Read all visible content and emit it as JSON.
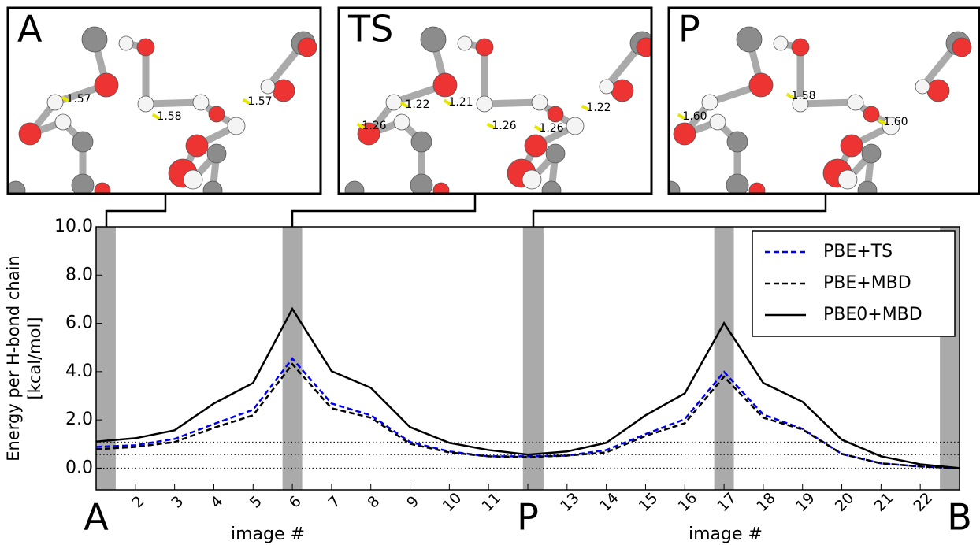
{
  "panels": [
    {
      "label": "A",
      "distances": [
        "1.57",
        "1.58",
        "1.57"
      ]
    },
    {
      "label": "TS",
      "distances": [
        "1.26",
        "1.22",
        "1.21",
        "1.26",
        "1.26",
        "1.22"
      ]
    },
    {
      "label": "P",
      "distances": [
        "1.60",
        "1.58",
        "1.60"
      ]
    }
  ],
  "chart_data": {
    "type": "line",
    "ylabel": [
      "Energy per H-bond chain",
      "[kcal/mol]"
    ],
    "xlabel": "image #",
    "x": [
      1,
      2,
      3,
      4,
      5,
      6,
      7,
      8,
      9,
      10,
      11,
      12,
      13,
      14,
      15,
      16,
      17,
      18,
      19,
      20,
      21,
      22,
      23
    ],
    "xlim": [
      1,
      23
    ],
    "xticks": [
      2,
      3,
      4,
      5,
      6,
      7,
      8,
      9,
      10,
      11,
      13,
      14,
      15,
      16,
      17,
      18,
      19,
      20,
      21,
      22
    ],
    "point_labels": [
      {
        "value": 1,
        "label": "A"
      },
      {
        "value": 12,
        "label": "P"
      },
      {
        "value": 23,
        "label": "B"
      }
    ],
    "ylim": [
      -0.9,
      10
    ],
    "yticks": [
      {
        "value": 0,
        "label": "0.0"
      },
      {
        "value": 2,
        "label": "2.0"
      },
      {
        "value": 4,
        "label": "4.0"
      },
      {
        "value": 6,
        "label": "6.0"
      },
      {
        "value": 8,
        "label": "8.0"
      },
      {
        "value": 10,
        "label": "10.0"
      }
    ],
    "hlines": [
      0,
      0.56,
      1.08
    ],
    "legend": "upper right",
    "series": [
      {
        "name": "PBE+TS",
        "color": "#0000ee",
        "dash": true,
        "values": [
          0.88,
          0.95,
          1.21,
          1.83,
          2.42,
          4.54,
          2.68,
          2.19,
          1.08,
          0.69,
          0.49,
          0.49,
          0.52,
          0.75,
          1.41,
          2.03,
          3.99,
          2.22,
          1.63,
          0.59,
          0.2,
          0.07,
          0
        ]
      },
      {
        "name": "PBE+MBD",
        "color": "#000000",
        "dash": true,
        "values": [
          0.78,
          0.88,
          1.08,
          1.67,
          2.19,
          4.31,
          2.48,
          2.09,
          1.01,
          0.65,
          0.49,
          0.46,
          0.52,
          0.65,
          1.34,
          1.86,
          3.79,
          2.09,
          1.6,
          0.59,
          0.2,
          0.07,
          0
        ]
      },
      {
        "name": "PBE0+MBD",
        "color": "#000000",
        "dash": false,
        "values": [
          1.1,
          1.24,
          1.57,
          2.68,
          3.53,
          6.6,
          4.02,
          3.33,
          1.7,
          1.05,
          0.75,
          0.56,
          0.69,
          1.05,
          2.19,
          3.1,
          6.01,
          3.53,
          2.75,
          1.18,
          0.49,
          0.16,
          0
        ]
      }
    ]
  }
}
